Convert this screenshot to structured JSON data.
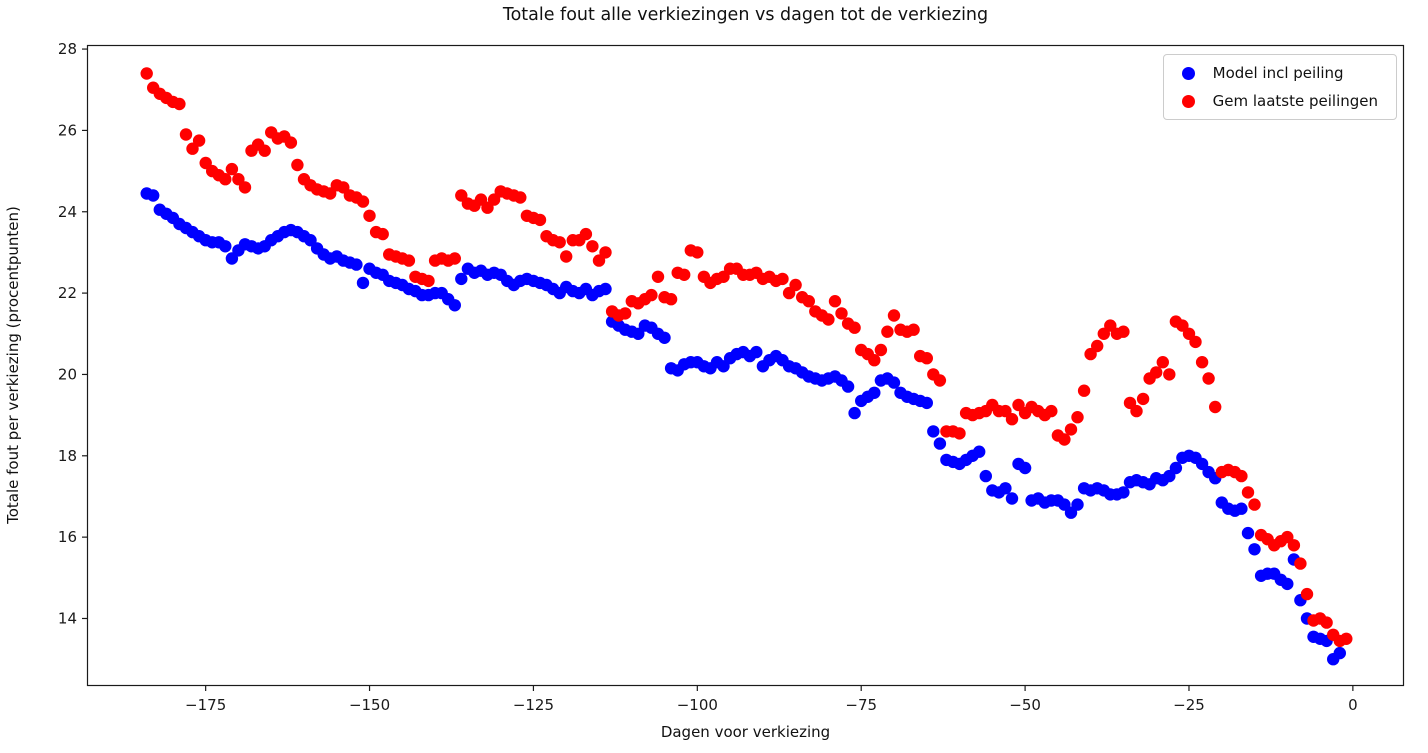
{
  "chart_data": {
    "type": "scatter",
    "title": "Totale fout alle verkiezingen vs dagen tot de verkiezing",
    "xlabel": "Dagen voor verkiezing",
    "ylabel": "Totale fout per verkiezing (procentpunten)",
    "xlim": [
      -193.1,
      7.8
    ],
    "ylim": [
      12.34,
      28.1
    ],
    "x_ticks": [
      -175,
      -150,
      -125,
      -100,
      -75,
      -50,
      -25,
      0
    ],
    "x_tick_labels": [
      "−175",
      "−150",
      "−125",
      "−100",
      "−75",
      "−50",
      "−25",
      "0"
    ],
    "y_ticks": [
      14,
      16,
      18,
      20,
      22,
      24,
      26,
      28
    ],
    "y_tick_labels": [
      "14",
      "16",
      "18",
      "20",
      "22",
      "24",
      "26",
      "28"
    ],
    "grid": false,
    "legend_position": "upper right",
    "marker_diameter_px": 12.4,
    "colors": {
      "blue_series": "#0000ff",
      "red_series": "#ff0000",
      "axis": "#1a1a1a",
      "legend_border": "#cccccc"
    },
    "series": [
      {
        "name": "Model incl peiling",
        "color": "#0000ff",
        "x_start": -184,
        "x_step": 1,
        "y": [
          24.45,
          24.4,
          24.05,
          23.95,
          23.85,
          23.7,
          23.6,
          23.5,
          23.4,
          23.3,
          23.25,
          23.25,
          23.15,
          22.85,
          23.05,
          23.2,
          23.15,
          23.1,
          23.15,
          23.3,
          23.4,
          23.5,
          23.55,
          23.5,
          23.4,
          23.3,
          23.1,
          22.95,
          22.85,
          22.9,
          22.8,
          22.75,
          22.7,
          22.25,
          22.6,
          22.5,
          22.45,
          22.3,
          22.25,
          22.2,
          22.1,
          22.05,
          21.95,
          21.95,
          22.0,
          22.0,
          21.85,
          21.7,
          22.35,
          22.6,
          22.5,
          22.55,
          22.45,
          22.5,
          22.45,
          22.3,
          22.2,
          22.3,
          22.35,
          22.3,
          22.25,
          22.2,
          22.1,
          22.0,
          22.15,
          22.05,
          22.0,
          22.1,
          21.95,
          22.05,
          22.1,
          21.3,
          21.2,
          21.1,
          21.05,
          21.0,
          21.2,
          21.15,
          21.0,
          20.9,
          20.15,
          20.1,
          20.25,
          20.3,
          20.3,
          20.2,
          20.15,
          20.3,
          20.2,
          20.4,
          20.5,
          20.55,
          20.45,
          20.55,
          20.2,
          20.35,
          20.45,
          20.35,
          20.2,
          20.15,
          20.05,
          19.95,
          19.9,
          19.85,
          19.9,
          19.95,
          19.85,
          19.7,
          19.05,
          19.35,
          19.45,
          19.55,
          19.85,
          19.9,
          19.8,
          19.55,
          19.45,
          19.4,
          19.35,
          19.3,
          18.6,
          18.3,
          17.9,
          17.85,
          17.8,
          17.9,
          18.0,
          18.1,
          17.5,
          17.15,
          17.1,
          17.2,
          16.95,
          17.8,
          17.7,
          16.9,
          16.95,
          16.85,
          16.9,
          16.9,
          16.8,
          16.6,
          16.8,
          17.2,
          17.15,
          17.2,
          17.15,
          17.05,
          17.05,
          17.1,
          17.35,
          17.4,
          17.35,
          17.3,
          17.45,
          17.4,
          17.5,
          17.7,
          17.95,
          18.0,
          17.95,
          17.8,
          17.6,
          17.45,
          16.85,
          16.7,
          16.65,
          16.7,
          16.1,
          15.7,
          15.05,
          15.1,
          15.1,
          14.95,
          14.85,
          15.45,
          14.45,
          14.0,
          13.55,
          13.5,
          13.45,
          13.0,
          13.15
        ]
      },
      {
        "name": "Gem laatste peilingen",
        "color": "#ff0000",
        "x_start": -184,
        "x_step": 1,
        "y": [
          27.4,
          27.05,
          26.9,
          26.8,
          26.7,
          26.65,
          25.9,
          25.55,
          25.75,
          25.2,
          25.0,
          24.9,
          24.8,
          25.05,
          24.8,
          24.6,
          25.5,
          25.65,
          25.5,
          25.95,
          25.8,
          25.85,
          25.7,
          25.15,
          24.8,
          24.65,
          24.55,
          24.5,
          24.45,
          24.65,
          24.6,
          24.4,
          24.35,
          24.25,
          23.9,
          23.5,
          23.45,
          22.95,
          22.9,
          22.85,
          22.8,
          22.4,
          22.35,
          22.3,
          22.8,
          22.85,
          22.8,
          22.85,
          24.4,
          24.2,
          24.15,
          24.3,
          24.1,
          24.3,
          24.5,
          24.45,
          24.4,
          24.35,
          23.9,
          23.85,
          23.8,
          23.4,
          23.3,
          23.25,
          22.9,
          23.3,
          23.3,
          23.45,
          23.15,
          22.8,
          23.0,
          21.55,
          21.45,
          21.5,
          21.8,
          21.75,
          21.85,
          21.95,
          22.4,
          21.9,
          21.85,
          22.5,
          22.45,
          23.05,
          23.0,
          22.4,
          22.25,
          22.35,
          22.4,
          22.6,
          22.6,
          22.45,
          22.45,
          22.5,
          22.35,
          22.4,
          22.3,
          22.35,
          22.0,
          22.2,
          21.9,
          21.8,
          21.55,
          21.45,
          21.35,
          21.8,
          21.5,
          21.25,
          21.15,
          20.6,
          20.5,
          20.35,
          20.6,
          21.05,
          21.45,
          21.1,
          21.05,
          21.1,
          20.45,
          20.4,
          20.0,
          19.85,
          18.6,
          18.6,
          18.55,
          19.05,
          19.0,
          19.05,
          19.1,
          19.25,
          19.1,
          19.1,
          18.9,
          19.25,
          19.05,
          19.2,
          19.1,
          19.0,
          19.1,
          18.5,
          18.4,
          18.65,
          18.95,
          19.6,
          20.5,
          20.7,
          21.0,
          21.2,
          21.0,
          21.05,
          19.3,
          19.1,
          19.4,
          19.9,
          20.05,
          20.3,
          20.0,
          21.3,
          21.2,
          21.0,
          20.8,
          20.3,
          19.9,
          19.2,
          17.6,
          17.65,
          17.6,
          17.5,
          17.1,
          16.8,
          16.05,
          15.95,
          15.8,
          15.9,
          16.0,
          15.8,
          15.35,
          14.6,
          13.95,
          14.0,
          13.9,
          13.6,
          13.45,
          13.5
        ]
      }
    ]
  }
}
